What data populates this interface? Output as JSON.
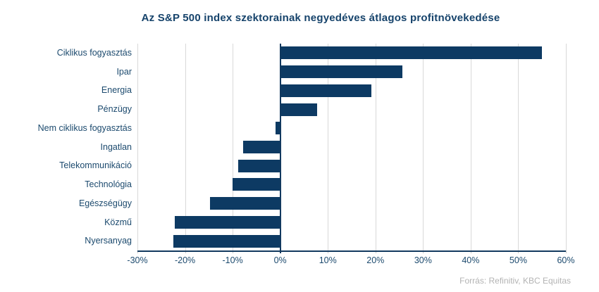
{
  "title": "Az S&P 500 index szektorainak negyedéves átlagos profitnövekedése",
  "source": "Forrás: Refinitiv, KBC Equitas",
  "colors": {
    "bar": "#0d3a63",
    "axis": "#12395f",
    "grid": "#d9d9d9",
    "title_text": "#16436b",
    "label_text": "#1c4a6e",
    "source_text": "#b3b3b3",
    "background": "#ffffff"
  },
  "chart_data": {
    "type": "bar",
    "orientation": "horizontal",
    "title": "Az S&P 500 index szektorainak negyedéves átlagos profitnövekedése",
    "categories": [
      "Ciklikus fogyasztás",
      "Ipar",
      "Energia",
      "Pénzügy",
      "Nem ciklikus fogyasztás",
      "Ingatlan",
      "Telekommunikáció",
      "Technológia",
      "Egészségügy",
      "Közmű",
      "Nyersanyag"
    ],
    "values": [
      55,
      25.7,
      19.1,
      7.8,
      -1,
      -7.8,
      -8.8,
      -10,
      -14.8,
      -22.2,
      -22.4
    ],
    "xlabel": "",
    "ylabel": "",
    "xlim": [
      -30,
      60
    ],
    "x_tick_values": [
      -30,
      -20,
      -10,
      0,
      10,
      20,
      30,
      40,
      50,
      60
    ],
    "x_tick_labels": [
      "-30%",
      "-20%",
      "-10%",
      "0%",
      "10%",
      "20%",
      "30%",
      "40%",
      "50%",
      "60%"
    ],
    "grid": true,
    "legend": false
  }
}
